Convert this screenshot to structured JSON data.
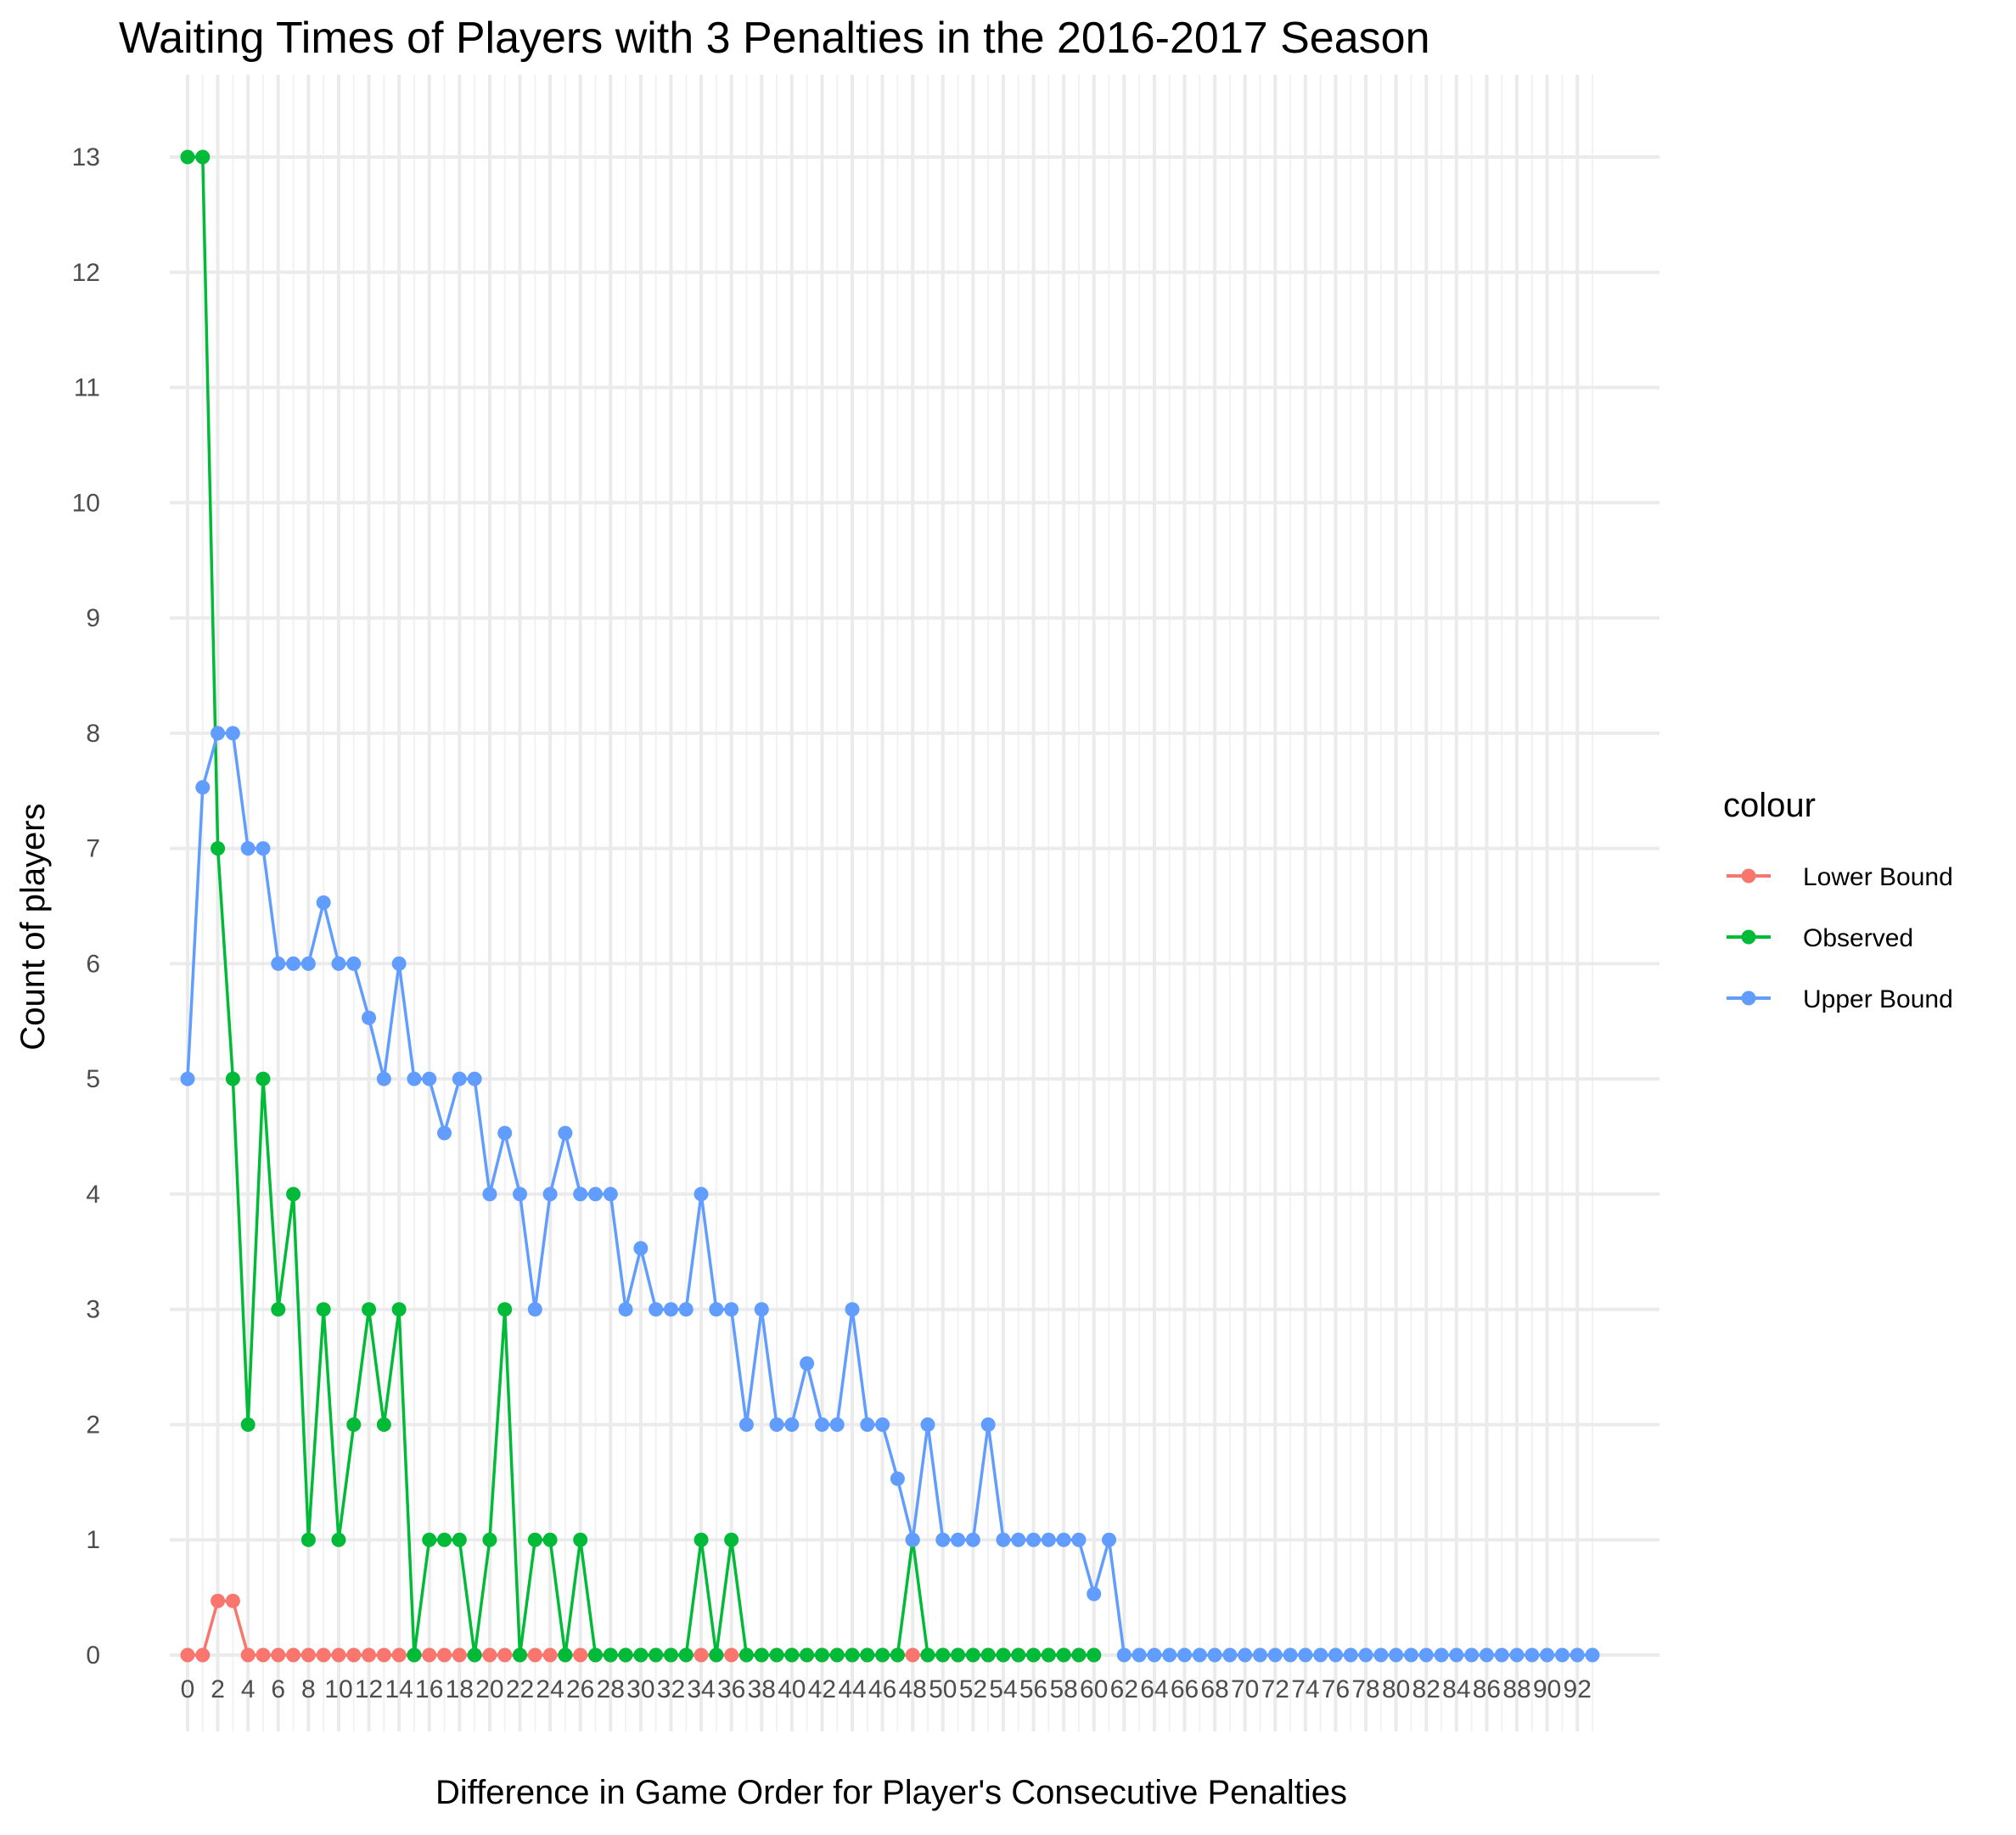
{
  "chart_data": {
    "type": "line",
    "title": "Waiting Times of Players with 3 Penalties in the 2016-2017 Season",
    "xlabel": "Difference in Game Order for Player's Consecutive Penalties",
    "ylabel": "Count of players",
    "xlim": [
      0,
      93
    ],
    "ylim": [
      0,
      13
    ],
    "x_ticks": [
      "0",
      "2",
      "4",
      "6",
      "8",
      "10",
      "12",
      "14",
      "16",
      "18",
      "20",
      "22",
      "24",
      "26",
      "28",
      "30",
      "32",
      "34",
      "36",
      "38",
      "40",
      "42",
      "44",
      "46",
      "48",
      "50",
      "52",
      "54",
      "56",
      "58",
      "60",
      "62",
      "64",
      "66",
      "68",
      "70",
      "72",
      "74",
      "76",
      "78",
      "80",
      "82",
      "84",
      "86",
      "88",
      "90",
      "92"
    ],
    "y_ticks": [
      "0",
      "1",
      "2",
      "3",
      "4",
      "5",
      "6",
      "7",
      "8",
      "9",
      "10",
      "11",
      "12",
      "13"
    ],
    "grid": true,
    "legend": {
      "title": "colour",
      "position": "right"
    },
    "series": [
      {
        "name": "Lower Bound",
        "color": "#F8766D",
        "x": [
          0,
          1,
          2,
          3,
          4,
          5,
          6,
          7,
          8,
          9,
          10,
          11,
          12,
          13,
          14,
          15,
          16,
          17,
          18,
          19,
          20,
          21,
          22,
          23,
          24,
          25,
          26,
          27,
          28,
          29,
          30,
          31,
          32,
          33,
          34,
          35,
          36,
          37,
          38,
          39,
          40,
          41,
          42,
          43,
          44,
          45,
          46,
          47,
          48,
          49,
          50,
          51,
          52,
          53,
          54,
          55,
          56,
          57,
          58,
          59,
          60
        ],
        "values": [
          0,
          0,
          0.47,
          0.47,
          0,
          0,
          0,
          0,
          0,
          0,
          0,
          0,
          0,
          0,
          0,
          0,
          0,
          0,
          0,
          0,
          0,
          0,
          0,
          0,
          0,
          0,
          0,
          0,
          0,
          0,
          0,
          0,
          0,
          0,
          0,
          0,
          0,
          0,
          0,
          0,
          0,
          0,
          0,
          0,
          0,
          0,
          0,
          0,
          0,
          0,
          0,
          0,
          0,
          0,
          0,
          0,
          0,
          0,
          0,
          0,
          0
        ]
      },
      {
        "name": "Observed",
        "color": "#00BA38",
        "x": [
          0,
          1,
          2,
          3,
          4,
          5,
          6,
          7,
          8,
          9,
          10,
          11,
          12,
          13,
          14,
          15,
          16,
          17,
          18,
          19,
          20,
          21,
          22,
          23,
          24,
          25,
          26,
          27,
          28,
          29,
          30,
          31,
          32,
          33,
          34,
          35,
          36,
          37,
          38,
          39,
          40,
          41,
          42,
          43,
          44,
          45,
          46,
          47,
          48,
          49,
          50,
          51,
          52,
          53,
          54,
          55,
          56,
          57,
          58,
          59,
          60
        ],
        "values": [
          13,
          13,
          7,
          5,
          2,
          5,
          3,
          4,
          1,
          3,
          1,
          2,
          3,
          2,
          3,
          0,
          1,
          1,
          1,
          0,
          1,
          3,
          0,
          1,
          1,
          0,
          1,
          0,
          0,
          0,
          0,
          0,
          0,
          0,
          1,
          0,
          1,
          0,
          0,
          0,
          0,
          0,
          0,
          0,
          0,
          0,
          0,
          0,
          1,
          0,
          0,
          0,
          0,
          0,
          0,
          0,
          0,
          0,
          0,
          0,
          0
        ]
      },
      {
        "name": "Upper Bound",
        "color": "#619CFF",
        "x": [
          0,
          1,
          2,
          3,
          4,
          5,
          6,
          7,
          8,
          9,
          10,
          11,
          12,
          13,
          14,
          15,
          16,
          17,
          18,
          19,
          20,
          21,
          22,
          23,
          24,
          25,
          26,
          27,
          28,
          29,
          30,
          31,
          32,
          33,
          34,
          35,
          36,
          37,
          38,
          39,
          40,
          41,
          42,
          43,
          44,
          45,
          46,
          47,
          48,
          49,
          50,
          51,
          52,
          53,
          54,
          55,
          56,
          57,
          58,
          59,
          60,
          61,
          62,
          63,
          64,
          65,
          66,
          67,
          68,
          69,
          70,
          71,
          72,
          73,
          74,
          75,
          76,
          77,
          78,
          79,
          80,
          81,
          82,
          83,
          84,
          85,
          86,
          87,
          88,
          89,
          90,
          91,
          92,
          93
        ],
        "values": [
          5,
          7.53,
          8,
          8,
          7,
          7,
          6,
          6,
          6,
          6.53,
          6,
          6,
          5.53,
          5,
          6,
          5,
          5,
          4.53,
          5,
          5,
          4,
          4.53,
          4,
          3,
          4,
          4.53,
          4,
          4,
          4,
          3,
          3.53,
          3,
          3,
          3,
          4,
          3,
          3,
          2,
          3,
          2,
          2,
          2.53,
          2,
          2,
          3,
          2,
          2,
          1.53,
          1,
          2,
          1,
          1,
          1,
          2,
          1,
          1,
          1,
          1,
          1,
          1,
          0.53,
          1,
          0,
          0,
          0,
          0,
          0,
          0,
          0,
          0,
          0,
          0,
          0,
          0,
          0,
          0,
          0,
          0,
          0,
          0,
          0,
          0,
          0,
          0,
          0,
          0,
          0,
          0,
          0,
          0,
          0,
          0,
          0,
          0
        ]
      }
    ]
  }
}
